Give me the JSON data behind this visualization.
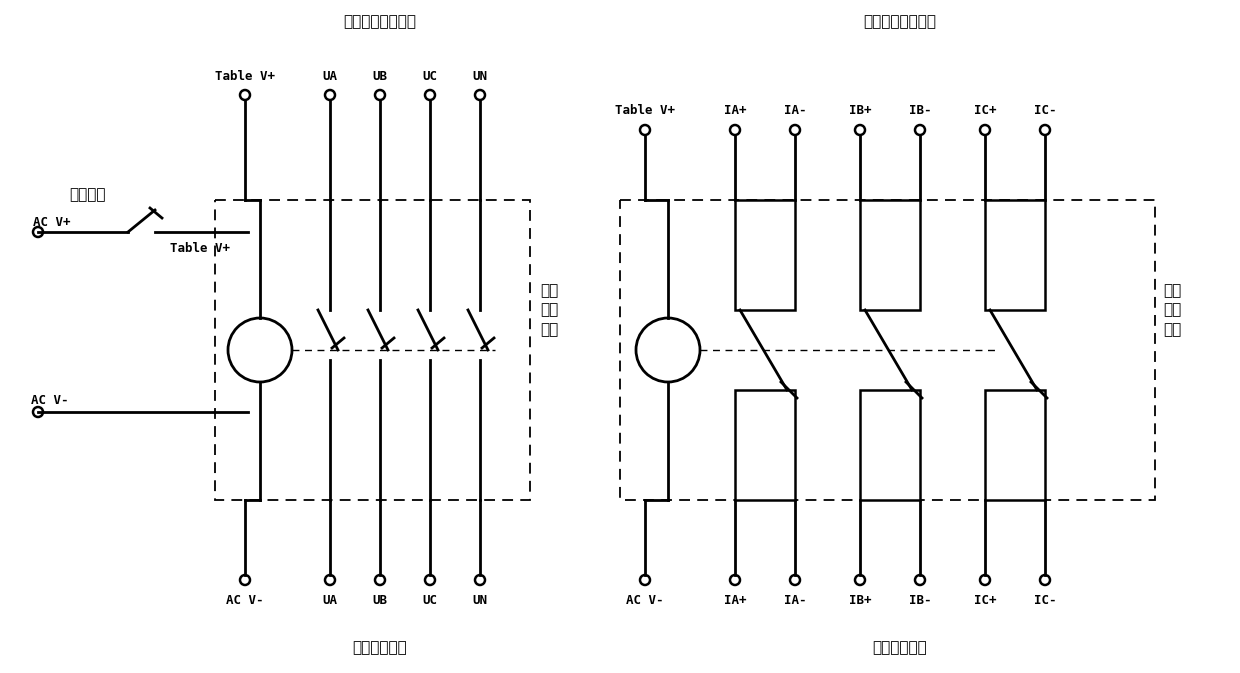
{
  "title_left": "电力监控仪接线侧",
  "title_right": "电力监控仪接线侧",
  "bottom_left": "功率源接线侧",
  "bottom_right": "功率源接线侧",
  "label_guang_dian": "光电开关",
  "label_chang_kai": "常开\n型接\n触器",
  "label_chang_bi": "常闭\n型接\n触器",
  "bg_color": "#ffffff",
  "line_color": "#000000"
}
